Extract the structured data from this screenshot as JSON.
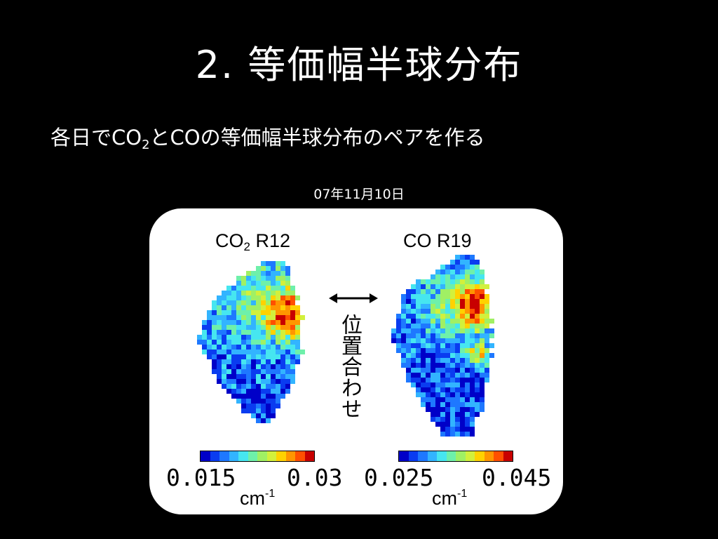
{
  "title": "2. 等価幅半球分布",
  "subtitle": {
    "part1": "各日でCO",
    "sub": "2",
    "part2": "とCOの等価幅半球分布のペアを作る"
  },
  "date": "07年11月10日",
  "left_plot": {
    "label_main": "CO",
    "label_sub": "2",
    "label_rest": " R12",
    "min_label": "0.015",
    "max_label": "0.03",
    "unit": "cm",
    "unit_exp": "-1"
  },
  "right_plot": {
    "label": "CO R19",
    "min_label": "0.025",
    "max_label": "0.045",
    "unit": "cm",
    "unit_exp": "-1"
  },
  "center_text": "位置合わせ",
  "colors": {
    "background": "#000000",
    "panel": "#ffffff",
    "colormap": [
      "#0000c8",
      "#0a3cf0",
      "#1e78ff",
      "#32b4ff",
      "#46e6f0",
      "#6ef0aa",
      "#a0f064",
      "#d2f03c",
      "#ffd200",
      "#ff9600",
      "#ff5000",
      "#c80000"
    ]
  }
}
